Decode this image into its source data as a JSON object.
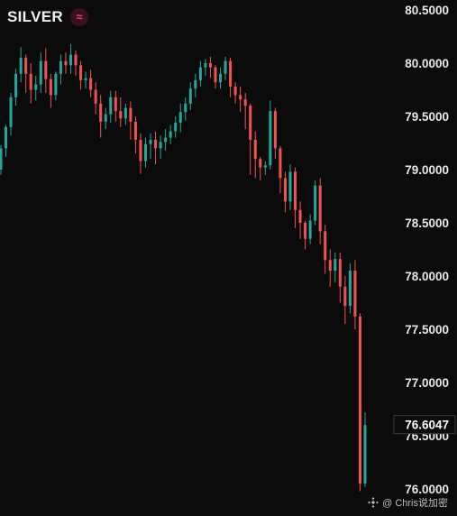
{
  "header": {
    "symbol": "SILVER",
    "icon": "wave-icon"
  },
  "watermark": {
    "text": "@ Chris说加密",
    "icon": "binance-icon"
  },
  "colors": {
    "up": "#26a69a",
    "down": "#ef5350",
    "background": "#0b0b0b",
    "text": "#e8e8e8"
  },
  "chart_data": {
    "type": "candlestick",
    "title": "",
    "xlabel": "",
    "ylabel": "",
    "ylim": [
      75.95,
      80.55
    ],
    "yticks": [
      "80.5000",
      "80.0000",
      "79.5000",
      "79.0000",
      "78.5000",
      "78.0000",
      "77.5000",
      "77.0000",
      "76.5000",
      "76.0000"
    ],
    "last_price": "76.6047",
    "grid": false,
    "legend": "none",
    "candles": [
      [
        79.0,
        79.23,
        79.2,
        78.95
      ],
      [
        79.2,
        79.42,
        79.4,
        79.12
      ],
      [
        79.4,
        79.72,
        79.68,
        79.32
      ],
      [
        79.68,
        79.95,
        79.9,
        79.6
      ],
      [
        79.9,
        80.15,
        80.05,
        79.82
      ],
      [
        80.05,
        80.08,
        79.9,
        79.72
      ],
      [
        79.9,
        80.0,
        79.75,
        79.62
      ],
      [
        79.75,
        79.88,
        79.8,
        79.65
      ],
      [
        79.8,
        80.1,
        80.02,
        79.72
      ],
      [
        80.02,
        80.14,
        79.85,
        79.72
      ],
      [
        79.85,
        79.9,
        79.7,
        79.58
      ],
      [
        79.7,
        79.92,
        79.9,
        79.65
      ],
      [
        79.9,
        80.08,
        80.02,
        79.8
      ],
      [
        80.02,
        80.1,
        79.98,
        79.9
      ],
      [
        79.98,
        80.18,
        80.08,
        79.9
      ],
      [
        80.08,
        80.12,
        79.98,
        79.88
      ],
      [
        79.98,
        80.02,
        79.84,
        79.75
      ],
      [
        79.84,
        79.92,
        79.86,
        79.76
      ],
      [
        79.86,
        79.94,
        79.75,
        79.68
      ],
      [
        79.75,
        79.82,
        79.62,
        79.52
      ],
      [
        79.62,
        79.7,
        79.45,
        79.3
      ],
      [
        79.45,
        79.58,
        79.52,
        79.38
      ],
      [
        79.52,
        79.74,
        79.68,
        79.44
      ],
      [
        79.68,
        79.74,
        79.55,
        79.45
      ],
      [
        79.55,
        79.68,
        79.48,
        79.4
      ],
      [
        79.48,
        79.62,
        79.58,
        79.42
      ],
      [
        79.58,
        79.64,
        79.45,
        79.28
      ],
      [
        79.45,
        79.5,
        79.28,
        79.15
      ],
      [
        79.28,
        79.34,
        79.08,
        78.96
      ],
      [
        79.08,
        79.3,
        79.24,
        79.02
      ],
      [
        79.24,
        79.34,
        79.28,
        79.1
      ],
      [
        79.28,
        79.36,
        79.2,
        79.05
      ],
      [
        79.2,
        79.32,
        79.26,
        79.1
      ],
      [
        79.26,
        79.38,
        79.3,
        79.18
      ],
      [
        79.3,
        79.42,
        79.36,
        79.24
      ],
      [
        79.36,
        79.5,
        79.44,
        79.3
      ],
      [
        79.44,
        79.62,
        79.54,
        79.35
      ],
      [
        79.54,
        79.68,
        79.62,
        79.46
      ],
      [
        79.62,
        79.82,
        79.76,
        79.56
      ],
      [
        79.76,
        79.9,
        79.84,
        79.68
      ],
      [
        79.84,
        80.02,
        79.96,
        79.78
      ],
      [
        79.96,
        80.04,
        80.0,
        79.88
      ],
      [
        80.0,
        80.06,
        79.96,
        79.86
      ],
      [
        79.96,
        79.98,
        79.82,
        79.76
      ],
      [
        79.82,
        79.96,
        79.9,
        79.76
      ],
      [
        79.9,
        80.06,
        80.02,
        79.84
      ],
      [
        80.02,
        80.05,
        79.78,
        79.68
      ],
      [
        79.78,
        79.82,
        79.7,
        79.62
      ],
      [
        79.7,
        79.78,
        79.66,
        79.54
      ],
      [
        79.66,
        79.72,
        79.6,
        79.38
      ],
      [
        79.6,
        79.62,
        79.28,
        78.95
      ],
      [
        79.28,
        79.36,
        79.1,
        78.92
      ],
      [
        79.1,
        79.12,
        79.02,
        78.9
      ],
      [
        79.02,
        79.08,
        79.04,
        78.95
      ],
      [
        79.04,
        79.65,
        79.55,
        79.0
      ],
      [
        79.55,
        79.58,
        79.2,
        79.1
      ],
      [
        79.2,
        79.22,
        78.92,
        78.78
      ],
      [
        78.92,
        78.98,
        78.7,
        78.6
      ],
      [
        78.7,
        79.05,
        78.98,
        78.62
      ],
      [
        78.98,
        79.02,
        78.62,
        78.45
      ],
      [
        78.62,
        78.7,
        78.5,
        78.35
      ],
      [
        78.5,
        78.52,
        78.35,
        78.25
      ],
      [
        78.35,
        78.58,
        78.52,
        78.3
      ],
      [
        78.52,
        78.9,
        78.85,
        78.48
      ],
      [
        78.85,
        78.92,
        78.42,
        78.3
      ],
      [
        78.42,
        78.48,
        78.15,
        78.02
      ],
      [
        78.15,
        78.25,
        78.05,
        77.9
      ],
      [
        78.05,
        78.22,
        78.16,
        77.94
      ],
      [
        78.16,
        78.22,
        77.9,
        77.75
      ],
      [
        77.9,
        78.0,
        77.72,
        77.55
      ],
      [
        77.72,
        78.12,
        78.05,
        77.65
      ],
      [
        78.05,
        78.15,
        77.62,
        77.5
      ],
      [
        77.62,
        77.65,
        76.05,
        75.98
      ],
      [
        76.05,
        76.72,
        76.6,
        76.02
      ]
    ]
  }
}
